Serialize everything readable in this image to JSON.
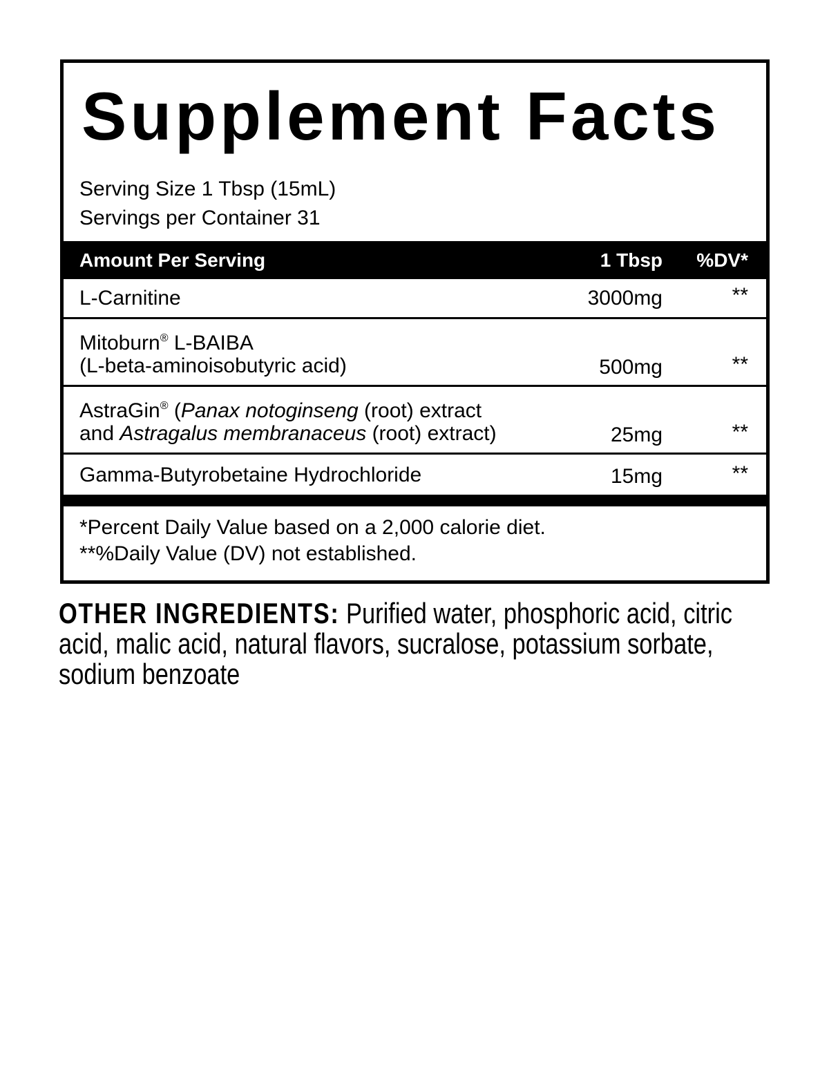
{
  "title": "Supplement Facts",
  "serving_size": "Serving Size 1 Tbsp (15mL)",
  "servings_per_container": "Servings per Container 31",
  "header": {
    "amount_per_serving": "Amount Per Serving",
    "unit": "1 Tbsp",
    "dv": "%DV*"
  },
  "rows": [
    {
      "name": "L-Carnitine",
      "amount": "3000mg",
      "dv": "**"
    },
    {
      "name_a": "Mitoburn",
      "reg": "®",
      "name_b": " L-BAIBA",
      "name_line2": "(L-beta-aminoisobutyric acid)",
      "amount": "500mg",
      "dv": "**"
    },
    {
      "name_a": "AstraGin",
      "reg": "®",
      "l1_b": " (",
      "l1_i": "Panax notoginseng",
      "l1_c": " (root) extract",
      "l2_a": "and ",
      "l2_i": "Astragalus membranaceus",
      "l2_c": " (root) extract)",
      "amount": "25mg",
      "dv": "**"
    },
    {
      "name": "Gamma-Butyrobetaine Hydrochloride",
      "amount": "15mg",
      "dv": "**"
    }
  ],
  "footnotes": [
    "*Percent Daily Value based on a 2,000 calorie diet.",
    "**%Daily Value (DV) not established."
  ],
  "other_ingredients": {
    "label": "OTHER INGREDIENTS:",
    "text": " Purified water, phosphoric acid, citric acid, malic acid, natural flavors, sucralose, potassium sorbate, sodium benzoate"
  }
}
